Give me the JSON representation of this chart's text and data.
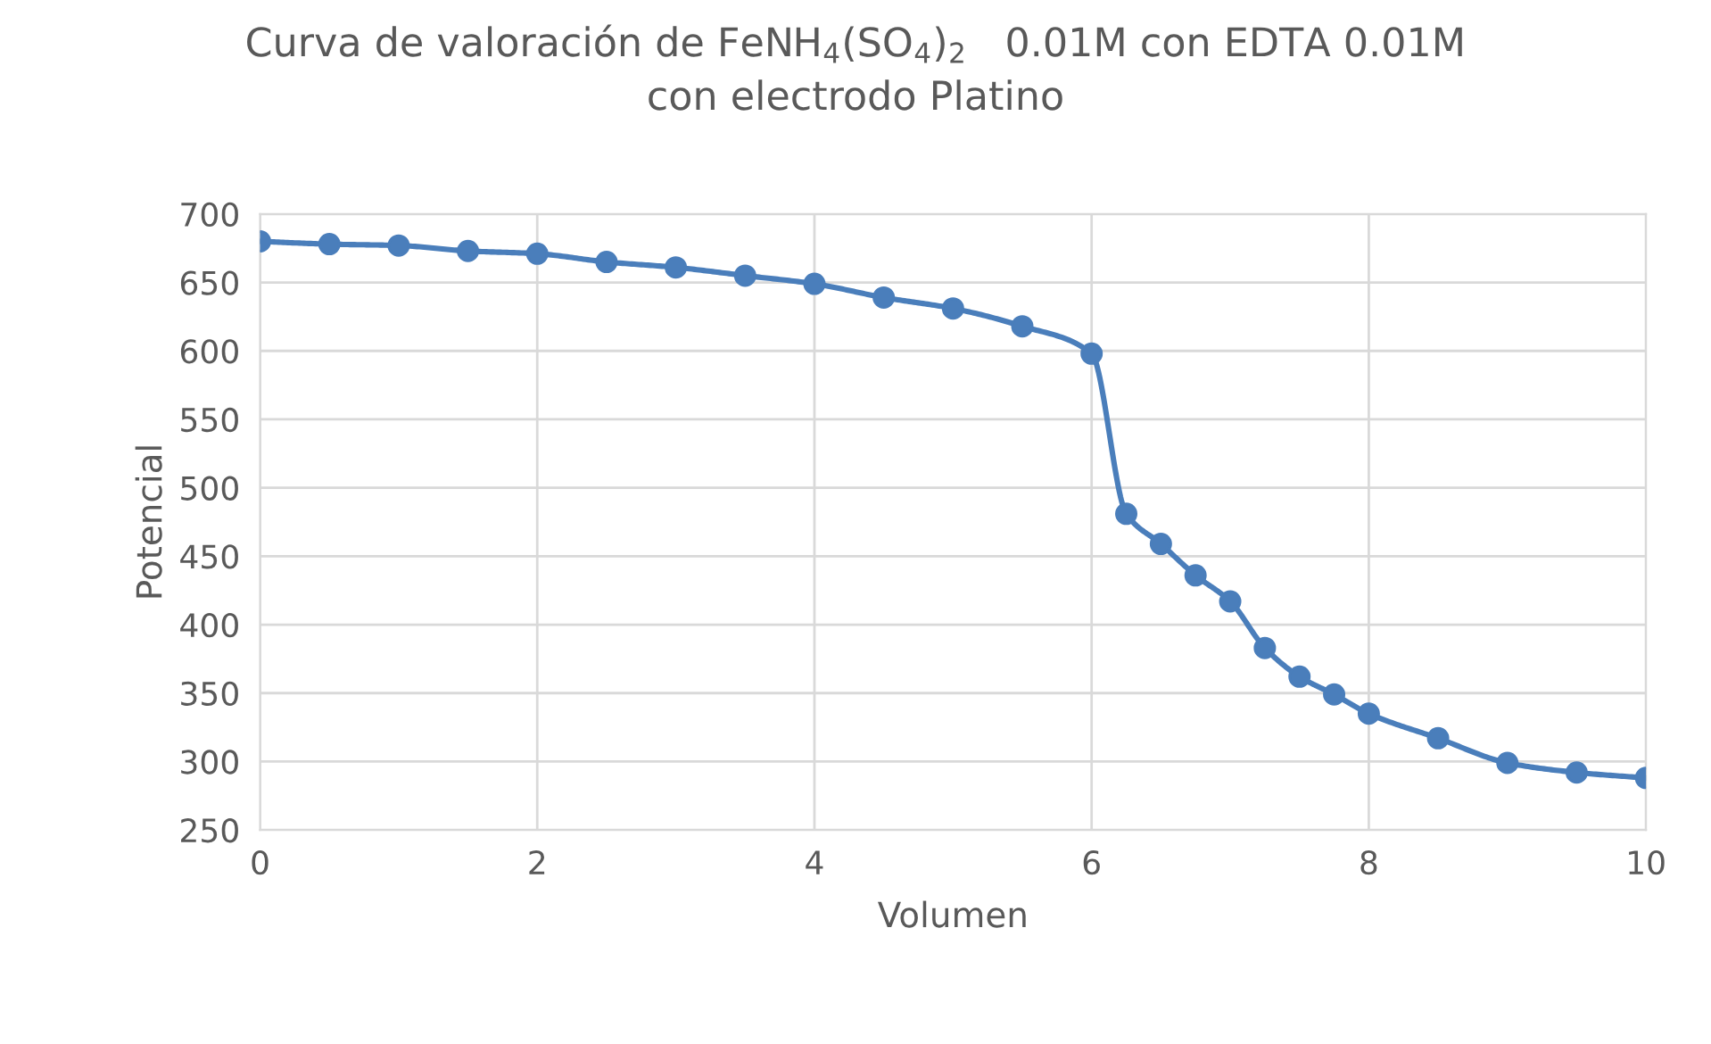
{
  "chart_data": {
    "type": "line",
    "title": "Curva de valoración de FeNH$_{4}$(SO$_{4}$)$_{2}$   0.01M con EDTA 0.01M\ncon electrodo Platino",
    "xlabel": "Volumen",
    "ylabel": "Potencial",
    "x": [
      0,
      0.5,
      1,
      1.5,
      2,
      2.5,
      3,
      3.5,
      4,
      4.5,
      5,
      5.5,
      6,
      6.25,
      6.5,
      6.75,
      7,
      7.25,
      7.5,
      7.75,
      8,
      8.5,
      9,
      9.5,
      10
    ],
    "series": [
      {
        "color": "#4a7ebb",
        "values": [
          680,
          678,
          677,
          673,
          671,
          665,
          661,
          655,
          649,
          639,
          631,
          618,
          598,
          481,
          459,
          436,
          417,
          383,
          362,
          349,
          335,
          317,
          299,
          292,
          288
        ]
      }
    ],
    "xlim": [
      0,
      10
    ],
    "xticks": [
      0,
      2,
      4,
      6,
      8,
      10
    ],
    "ylim": [
      250,
      700
    ],
    "yticks": [
      250,
      300,
      350,
      400,
      450,
      500,
      550,
      600,
      650,
      700
    ],
    "grid": true,
    "marker": "circle",
    "line_style": "solid"
  }
}
